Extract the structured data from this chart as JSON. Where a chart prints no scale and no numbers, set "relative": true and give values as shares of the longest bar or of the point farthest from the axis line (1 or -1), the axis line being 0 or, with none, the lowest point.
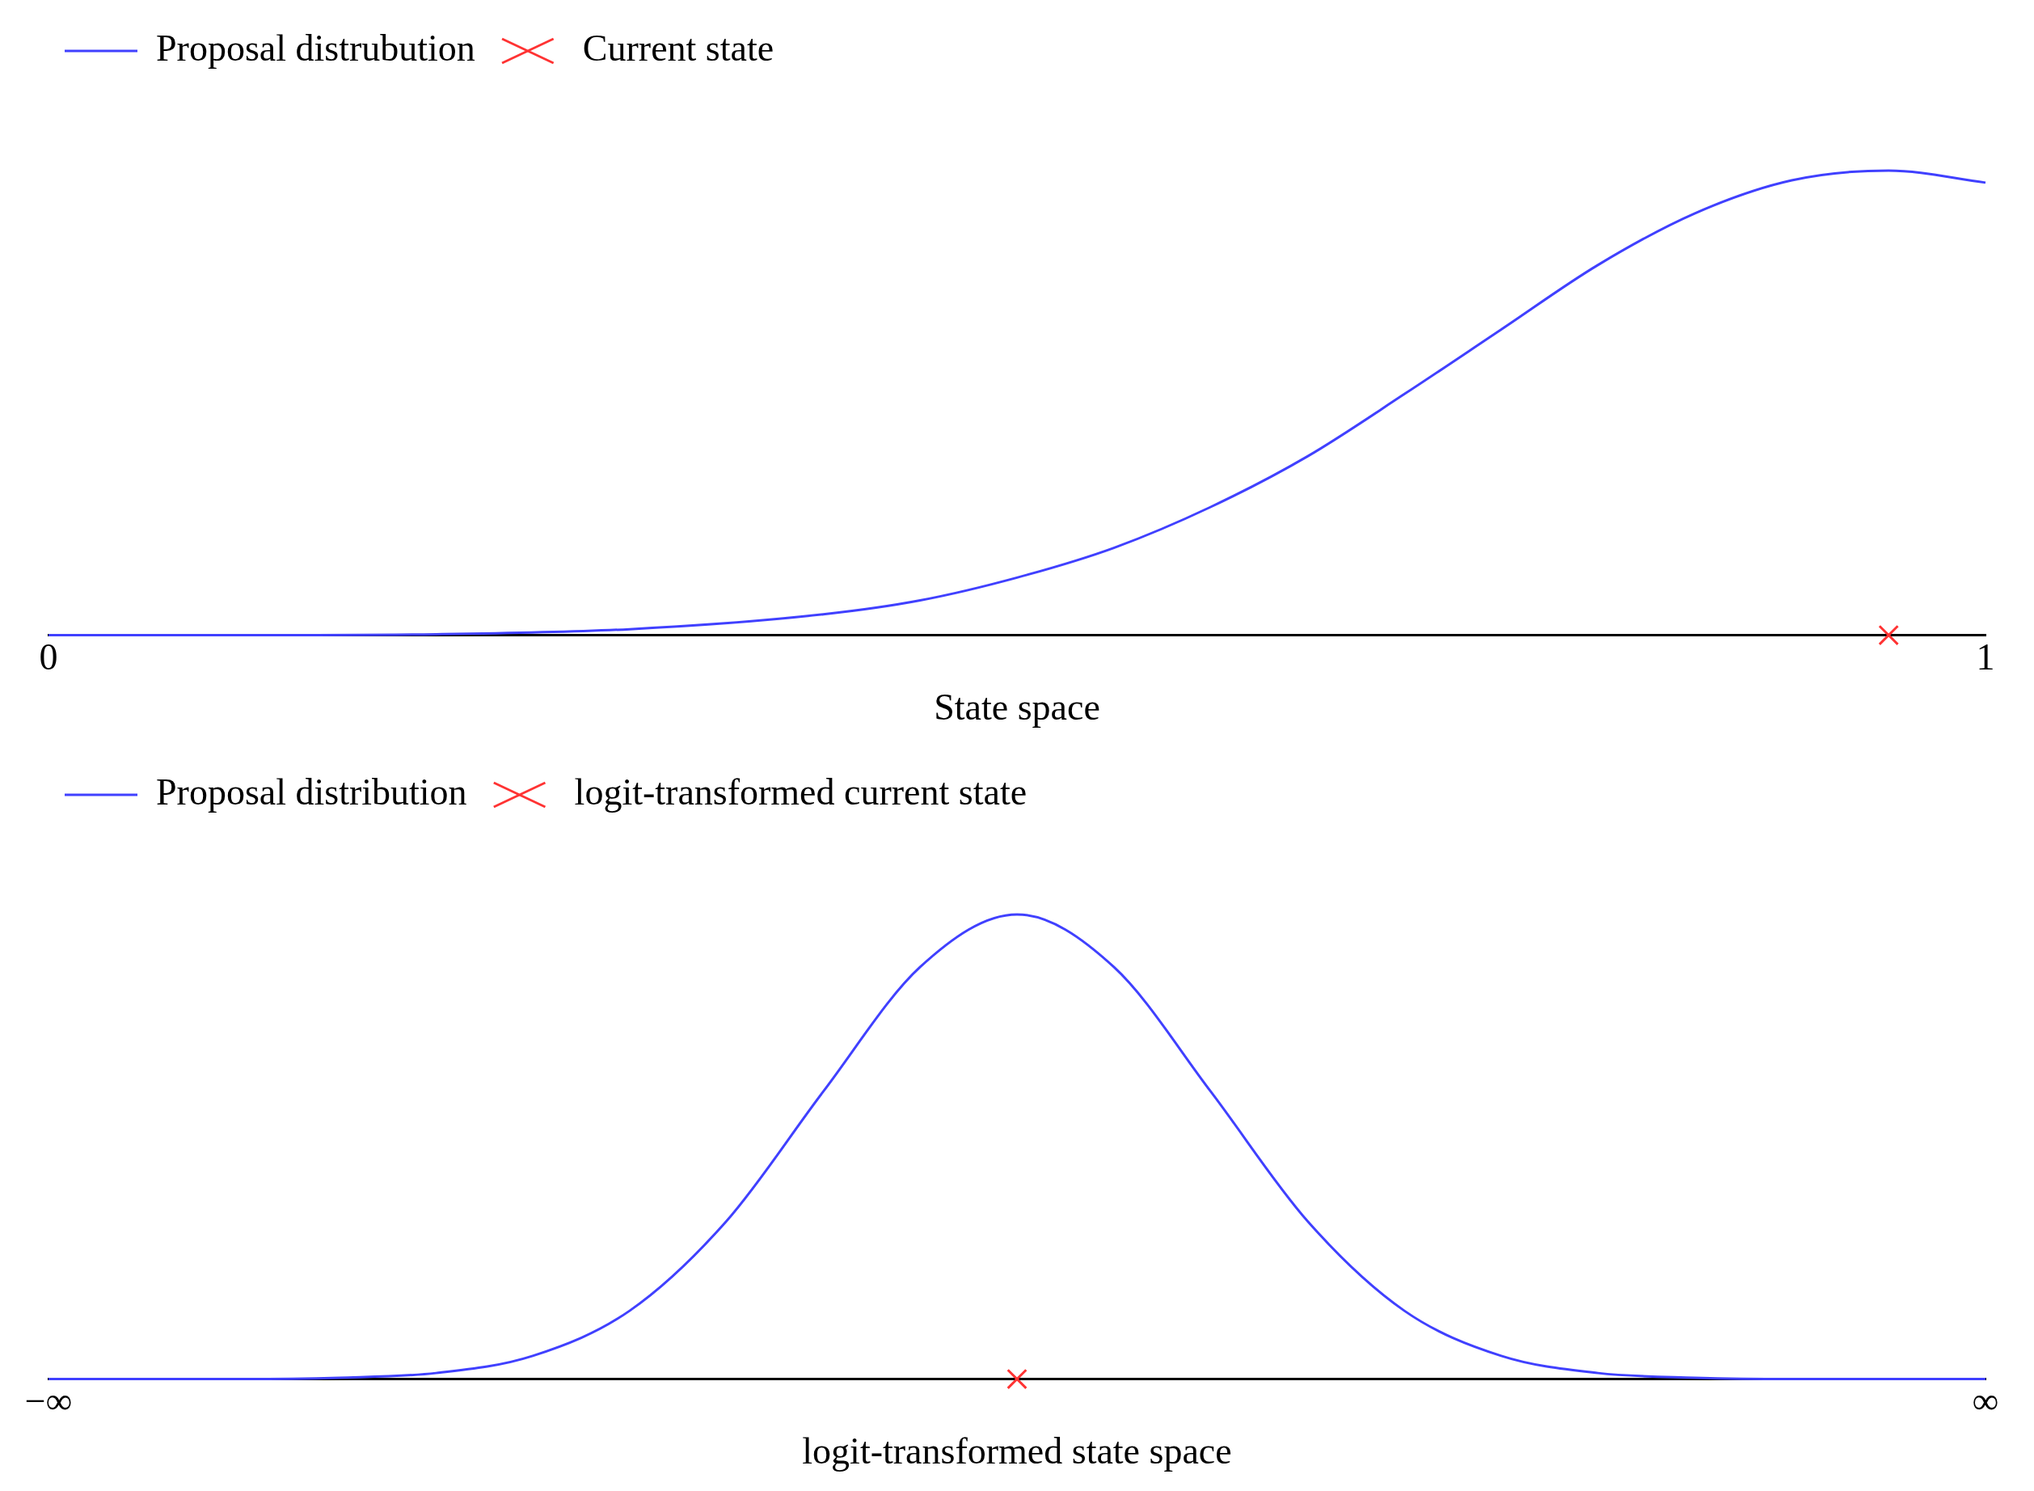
{
  "chart_data": [
    {
      "type": "line",
      "relative": true,
      "xlabel": "State space",
      "xlim": [
        0,
        1
      ],
      "xticks": [
        0,
        1
      ],
      "legend": "top left",
      "grid": false,
      "tick_labels": "x",
      "series": [
        {
          "name": "Proposal distrubution",
          "color": "#4040ff",
          "marker": "none",
          "x": [
            0,
            0.1,
            0.2,
            0.3,
            0.4,
            0.45,
            0.5,
            0.55,
            0.6,
            0.65,
            0.7,
            0.75,
            0.8,
            0.85,
            0.9,
            0.95,
            1
          ],
          "values": [
            0,
            0,
            0.002,
            0.013,
            0.045,
            0.075,
            0.124,
            0.188,
            0.276,
            0.385,
            0.519,
            0.658,
            0.797,
            0.908,
            0.979,
            1,
            0.974
          ]
        },
        {
          "name": "Current state",
          "type": "scatter",
          "color": "#ff3333",
          "marker": "cross",
          "x": [
            0.95
          ],
          "values": [
            0
          ]
        }
      ]
    },
    {
      "type": "line",
      "relative": true,
      "xlabel": "logit-transformed state space",
      "categories": [
        "−∞",
        null,
        null,
        null,
        null,
        null,
        null,
        null,
        null,
        null,
        null,
        null,
        null,
        null,
        null,
        null,
        null,
        null,
        null,
        null,
        "∞"
      ],
      "legend": "top left",
      "grid": false,
      "tick_labels": "x",
      "series": [
        {
          "name": "Proposal distribution",
          "color": "#4040ff",
          "marker": "none",
          "values": [
            0,
            0,
            0,
            0.003,
            0.013,
            0.05,
            0.147,
            0.34,
            0.619,
            0.887,
            1,
            0.887,
            0.619,
            0.34,
            0.147,
            0.05,
            0.013,
            0.003,
            0,
            0,
            0
          ]
        },
        {
          "name": "logit-transformed current state",
          "type": "scatter",
          "color": "#ff3333",
          "marker": "cross",
          "values": [
            null,
            null,
            null,
            null,
            null,
            null,
            null,
            null,
            null,
            null,
            0,
            null,
            null,
            null,
            null,
            null,
            null,
            null,
            null,
            null,
            null
          ]
        }
      ]
    }
  ]
}
